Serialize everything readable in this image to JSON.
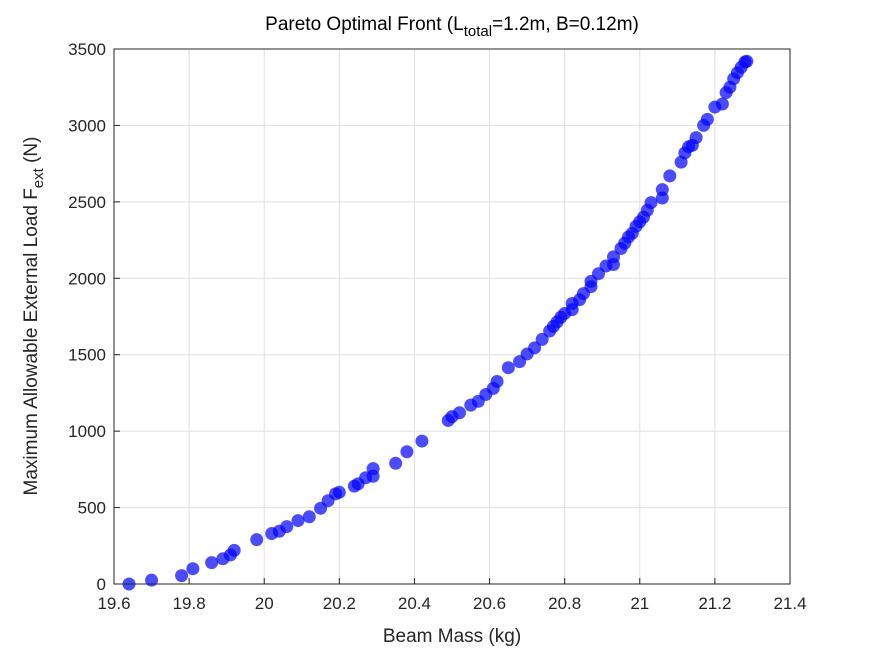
{
  "chart_data": {
    "type": "scatter",
    "title": {
      "prefix": "Pareto Optimal Front (L",
      "subscript": "total",
      "suffix": "=1.2m, B=0.12m)"
    },
    "xlabel": "Beam Mass (kg)",
    "ylabel": {
      "prefix": "Maximum Allowable External Load F",
      "subscript": "ext",
      "suffix": " (N)"
    },
    "xlim": [
      19.6,
      21.4
    ],
    "ylim": [
      0,
      3500
    ],
    "xticks": [
      19.6,
      19.8,
      20,
      20.2,
      20.4,
      20.6,
      20.8,
      21,
      21.2,
      21.4
    ],
    "yticks": [
      0,
      500,
      1000,
      1500,
      2000,
      2500,
      3000,
      3500
    ],
    "xtick_labels": [
      "19.6",
      "19.8",
      "20",
      "20.2",
      "20.4",
      "20.6",
      "20.8",
      "21",
      "21.2",
      "21.4"
    ],
    "ytick_labels": [
      "0",
      "500",
      "1000",
      "1500",
      "2000",
      "2500",
      "3000",
      "3500"
    ],
    "grid": true,
    "marker_color": "#0000ff",
    "marker_alpha": 0.7,
    "series": [
      {
        "points": [
          [
            19.64,
            0
          ],
          [
            19.7,
            25
          ],
          [
            19.78,
            55
          ],
          [
            19.81,
            100
          ],
          [
            19.86,
            140
          ],
          [
            19.89,
            165
          ],
          [
            19.91,
            190
          ],
          [
            19.92,
            220
          ],
          [
            19.98,
            290
          ],
          [
            20.02,
            330
          ],
          [
            20.04,
            345
          ],
          [
            20.06,
            375
          ],
          [
            20.09,
            415
          ],
          [
            20.12,
            440
          ],
          [
            20.15,
            495
          ],
          [
            20.17,
            545
          ],
          [
            20.19,
            590
          ],
          [
            20.2,
            600
          ],
          [
            20.24,
            640
          ],
          [
            20.25,
            655
          ],
          [
            20.27,
            695
          ],
          [
            20.29,
            705
          ],
          [
            20.29,
            755
          ],
          [
            20.35,
            790
          ],
          [
            20.38,
            865
          ],
          [
            20.42,
            935
          ],
          [
            20.49,
            1070
          ],
          [
            20.5,
            1095
          ],
          [
            20.52,
            1120
          ],
          [
            20.55,
            1170
          ],
          [
            20.57,
            1195
          ],
          [
            20.59,
            1240
          ],
          [
            20.61,
            1280
          ],
          [
            20.62,
            1325
          ],
          [
            20.65,
            1415
          ],
          [
            20.68,
            1455
          ],
          [
            20.7,
            1505
          ],
          [
            20.72,
            1545
          ],
          [
            20.74,
            1600
          ],
          [
            20.76,
            1655
          ],
          [
            20.77,
            1685
          ],
          [
            20.78,
            1715
          ],
          [
            20.79,
            1745
          ],
          [
            20.8,
            1770
          ],
          [
            20.82,
            1795
          ],
          [
            20.82,
            1835
          ],
          [
            20.84,
            1860
          ],
          [
            20.85,
            1900
          ],
          [
            20.87,
            1945
          ],
          [
            20.87,
            1980
          ],
          [
            20.89,
            2030
          ],
          [
            20.91,
            2080
          ],
          [
            20.93,
            2090
          ],
          [
            20.93,
            2140
          ],
          [
            20.95,
            2195
          ],
          [
            20.96,
            2230
          ],
          [
            20.97,
            2270
          ],
          [
            20.98,
            2295
          ],
          [
            20.99,
            2340
          ],
          [
            21.0,
            2370
          ],
          [
            21.01,
            2400
          ],
          [
            21.02,
            2445
          ],
          [
            21.03,
            2495
          ],
          [
            21.06,
            2525
          ],
          [
            21.06,
            2580
          ],
          [
            21.08,
            2670
          ],
          [
            21.11,
            2760
          ],
          [
            21.12,
            2820
          ],
          [
            21.13,
            2860
          ],
          [
            21.14,
            2870
          ],
          [
            21.15,
            2920
          ],
          [
            21.17,
            3000
          ],
          [
            21.18,
            3040
          ],
          [
            21.2,
            3120
          ],
          [
            21.22,
            3140
          ],
          [
            21.23,
            3215
          ],
          [
            21.24,
            3250
          ],
          [
            21.25,
            3305
          ],
          [
            21.26,
            3345
          ],
          [
            21.27,
            3380
          ],
          [
            21.28,
            3415
          ],
          [
            21.285,
            3420
          ]
        ]
      }
    ]
  }
}
